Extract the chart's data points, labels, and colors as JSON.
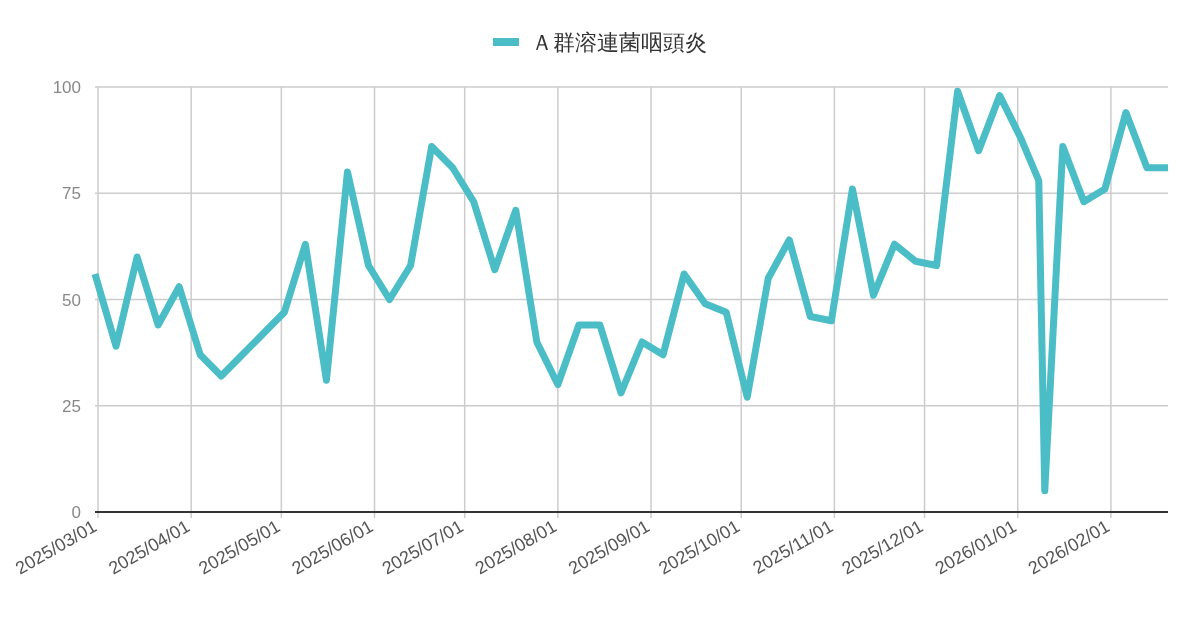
{
  "chart_data": {
    "type": "line",
    "x": [
      "2025-02-28",
      "2025-03-07",
      "2025-03-14",
      "2025-03-21",
      "2025-03-28",
      "2025-04-04",
      "2025-04-11",
      "2025-04-18",
      "2025-04-25",
      "2025-05-02",
      "2025-05-09",
      "2025-05-16",
      "2025-05-23",
      "2025-05-30",
      "2025-06-06",
      "2025-06-13",
      "2025-06-20",
      "2025-06-27",
      "2025-07-04",
      "2025-07-11",
      "2025-07-18",
      "2025-07-25",
      "2025-08-01",
      "2025-08-08",
      "2025-08-15",
      "2025-08-22",
      "2025-08-29",
      "2025-09-05",
      "2025-09-12",
      "2025-09-19",
      "2025-09-26",
      "2025-10-03",
      "2025-10-10",
      "2025-10-17",
      "2025-10-24",
      "2025-10-31",
      "2025-11-07",
      "2025-11-14",
      "2025-11-21",
      "2025-11-28",
      "2025-12-05",
      "2025-12-12",
      "2025-12-19",
      "2025-12-26",
      "2026-01-02",
      "2026-01-08",
      "2026-01-10",
      "2026-01-16",
      "2026-01-23",
      "2026-01-30",
      "2026-02-06",
      "2026-02-13",
      "2026-02-20"
    ],
    "series": [
      {
        "name": "Ａ群溶連菌咽頭炎",
        "color": "#4bbdc7",
        "values": [
          56,
          39,
          60,
          44,
          53,
          37,
          32,
          37,
          42,
          47,
          63,
          31,
          80,
          58,
          50,
          58,
          86,
          81,
          73,
          57,
          71,
          40,
          30,
          44,
          44,
          28,
          40,
          37,
          56,
          49,
          47,
          27,
          55,
          64,
          46,
          45,
          76,
          51,
          63,
          59,
          58,
          99,
          85,
          98,
          88,
          78,
          5,
          86,
          73,
          76,
          94,
          81,
          81
        ]
      }
    ],
    "xlim": [
      "2025-02-28",
      "2026-02-20"
    ],
    "xticks": [
      {
        "value": "2025-03-01",
        "label": "2025/03/01"
      },
      {
        "value": "2025-04-01",
        "label": "2025/04/01"
      },
      {
        "value": "2025-05-01",
        "label": "2025/05/01"
      },
      {
        "value": "2025-06-01",
        "label": "2025/06/01"
      },
      {
        "value": "2025-07-01",
        "label": "2025/07/01"
      },
      {
        "value": "2025-08-01",
        "label": "2025/08/01"
      },
      {
        "value": "2025-09-01",
        "label": "2025/09/01"
      },
      {
        "value": "2025-10-01",
        "label": "2025/10/01"
      },
      {
        "value": "2025-11-01",
        "label": "2025/11/01"
      },
      {
        "value": "2025-12-01",
        "label": "2025/12/01"
      },
      {
        "value": "2026-01-01",
        "label": "2026/01/01"
      },
      {
        "value": "2026-02-01",
        "label": "2026/02/01"
      }
    ],
    "ylim": [
      0,
      100
    ],
    "yticks": [
      0,
      25,
      50,
      75,
      100
    ],
    "grid": true,
    "legend": "top"
  }
}
